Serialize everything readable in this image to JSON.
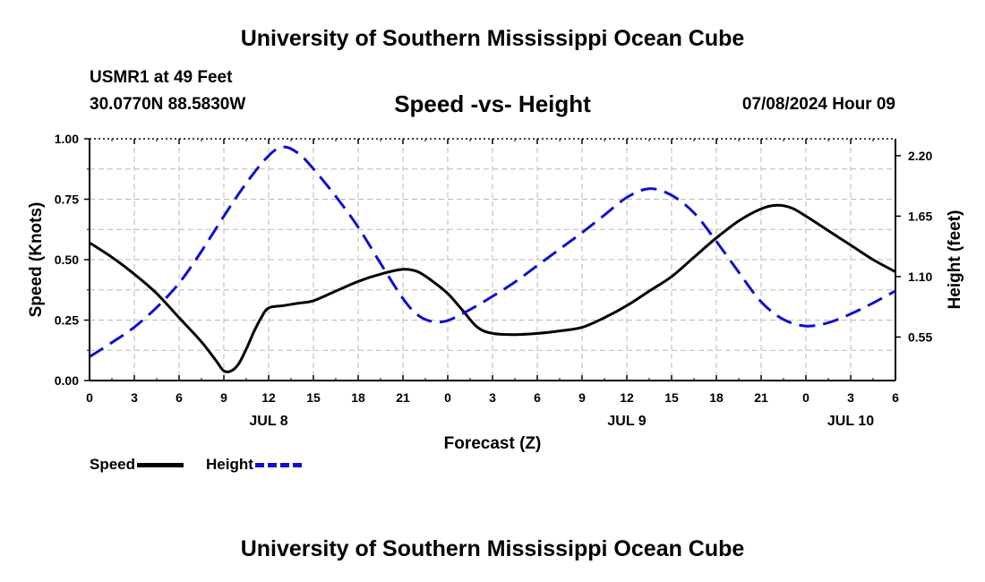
{
  "header": {
    "title": "University of Southern Mississippi Ocean Cube",
    "station": "USMR1 at 49 Feet",
    "coords": "30.0770N  88.5830W",
    "subtitle": "Speed -vs- Height",
    "datetime": "07/08/2024 Hour 09"
  },
  "footer": {
    "title": "University of Southern Mississippi Ocean Cube"
  },
  "legend": {
    "speed_label": "Speed",
    "height_label": "Height"
  },
  "colors": {
    "speed": "#000000",
    "height": "#1010cc",
    "grid": "#b8b8b8"
  },
  "chart_data": {
    "type": "line",
    "xlabel": "Forecast (Z)",
    "ylabel_left": "Speed (Knots)",
    "ylabel_right": "Height (feet)",
    "x_range": [
      0,
      54
    ],
    "x_ticks": [
      {
        "x": 0,
        "label": "0"
      },
      {
        "x": 3,
        "label": "3"
      },
      {
        "x": 6,
        "label": "6"
      },
      {
        "x": 9,
        "label": "9"
      },
      {
        "x": 12,
        "label": "12"
      },
      {
        "x": 15,
        "label": "15"
      },
      {
        "x": 18,
        "label": "18"
      },
      {
        "x": 21,
        "label": "21"
      },
      {
        "x": 24,
        "label": "0"
      },
      {
        "x": 27,
        "label": "3"
      },
      {
        "x": 30,
        "label": "6"
      },
      {
        "x": 33,
        "label": "9"
      },
      {
        "x": 36,
        "label": "12"
      },
      {
        "x": 39,
        "label": "15"
      },
      {
        "x": 42,
        "label": "18"
      },
      {
        "x": 45,
        "label": "21"
      },
      {
        "x": 48,
        "label": "0"
      },
      {
        "x": 51,
        "label": "3"
      },
      {
        "x": 54,
        "label": "6"
      }
    ],
    "date_labels": [
      {
        "x": 12,
        "label": "JUL 8"
      },
      {
        "x": 36,
        "label": "JUL 9"
      },
      {
        "x": 51,
        "label": "JUL 10"
      }
    ],
    "y_left_range": [
      0,
      1
    ],
    "y_left_ticks": [
      "0.00",
      "0.25",
      "0.50",
      "0.75",
      "1.00"
    ],
    "y_right_range": [
      0.154,
      2.354
    ],
    "y_right_ticks": [
      "0.55",
      "1.10",
      "1.65",
      "2.20"
    ],
    "series": [
      {
        "name": "Speed",
        "axis": "left",
        "x": [
          0,
          1.5,
          3,
          4.5,
          6,
          7.5,
          8.5,
          9,
          9.5,
          10,
          10.5,
          11,
          11.5,
          12,
          13,
          14,
          15,
          16.5,
          18,
          19.5,
          21,
          22,
          23,
          24,
          25,
          26,
          27,
          28.5,
          30,
          31.5,
          33,
          34.5,
          36,
          37.5,
          39,
          40.5,
          42,
          43.5,
          45,
          46,
          47,
          48,
          49.5,
          51,
          52.5,
          54
        ],
        "values": [
          0.57,
          0.51,
          0.44,
          0.36,
          0.26,
          0.16,
          0.08,
          0.04,
          0.04,
          0.07,
          0.13,
          0.2,
          0.26,
          0.3,
          0.31,
          0.32,
          0.33,
          0.37,
          0.41,
          0.44,
          0.46,
          0.45,
          0.41,
          0.36,
          0.29,
          0.22,
          0.195,
          0.19,
          0.195,
          0.205,
          0.22,
          0.26,
          0.31,
          0.37,
          0.43,
          0.51,
          0.59,
          0.66,
          0.71,
          0.725,
          0.715,
          0.68,
          0.62,
          0.56,
          0.5,
          0.45
        ]
      },
      {
        "name": "Height",
        "axis": "right",
        "x": [
          0,
          1.5,
          3,
          4.5,
          6,
          7.5,
          9,
          10.5,
          12,
          13,
          14,
          15,
          16.5,
          18,
          19.5,
          21,
          22,
          23,
          24,
          25.5,
          27,
          28.5,
          30,
          31.5,
          33,
          34.5,
          36,
          37.5,
          39,
          40.5,
          42,
          43.5,
          45,
          46.5,
          48,
          49.5,
          51,
          52.5,
          54
        ],
        "values": [
          0.37,
          0.5,
          0.64,
          0.82,
          1.04,
          1.33,
          1.65,
          1.95,
          2.2,
          2.28,
          2.22,
          2.08,
          1.83,
          1.55,
          1.22,
          0.9,
          0.75,
          0.69,
          0.7,
          0.8,
          0.92,
          1.05,
          1.2,
          1.35,
          1.5,
          1.66,
          1.82,
          1.9,
          1.84,
          1.68,
          1.42,
          1.14,
          0.87,
          0.71,
          0.65,
          0.68,
          0.76,
          0.86,
          0.97
        ]
      }
    ],
    "grid": true
  }
}
